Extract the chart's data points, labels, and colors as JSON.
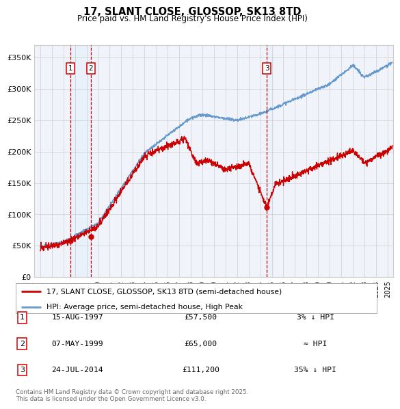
{
  "title": "17, SLANT CLOSE, GLOSSOP, SK13 8TD",
  "subtitle": "Price paid vs. HM Land Registry's House Price Index (HPI)",
  "red_line_label": "17, SLANT CLOSE, GLOSSOP, SK13 8TD (semi-detached house)",
  "blue_line_label": "HPI: Average price, semi-detached house, High Peak",
  "transactions": [
    {
      "num": 1,
      "date": "15-AUG-1997",
      "price": 57500,
      "note": "3% ↓ HPI",
      "x_year": 1997.62
    },
    {
      "num": 2,
      "date": "07-MAY-1999",
      "price": 65000,
      "note": "≈ HPI",
      "x_year": 1999.37
    },
    {
      "num": 3,
      "date": "24-JUL-2014",
      "price": 111200,
      "note": "35% ↓ HPI",
      "x_year": 2014.56
    }
  ],
  "footer": "Contains HM Land Registry data © Crown copyright and database right 2025.\nThis data is licensed under the Open Government Licence v3.0.",
  "ylim": [
    0,
    370000
  ],
  "yticks": [
    0,
    50000,
    100000,
    150000,
    200000,
    250000,
    300000,
    350000
  ],
  "ytick_labels": [
    "£0",
    "£50K",
    "£100K",
    "£150K",
    "£200K",
    "£250K",
    "£300K",
    "£350K"
  ],
  "xlim_start": 1994.5,
  "xlim_end": 2025.5,
  "grid_color": "#cccccc",
  "chart_bg": "#f0f4fa",
  "red_color": "#cc0000",
  "blue_color": "#6699cc",
  "vline_color": "#cc0000",
  "box_color": "#cc0000",
  "shade_color": "#ddeeff",
  "background_color": "#ffffff"
}
